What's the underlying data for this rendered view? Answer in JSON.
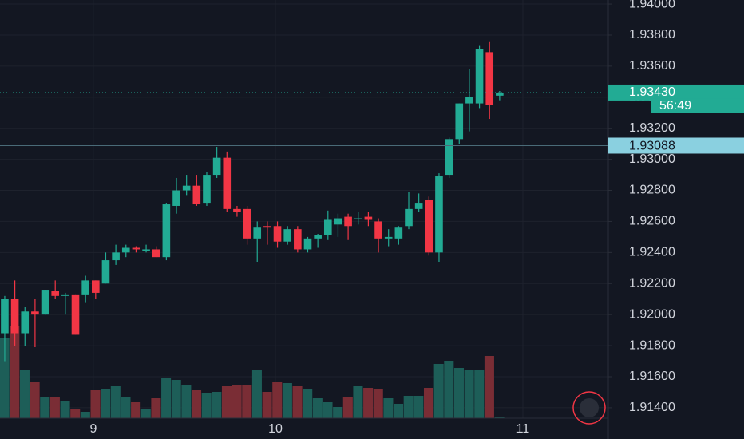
{
  "chart_data": {
    "type": "candlestick",
    "open": [
      1.9188,
      1.921,
      1.9188,
      1.9202,
      1.92,
      1.9215,
      1.9212,
      1.9213,
      1.9213,
      1.9222,
      1.922,
      1.9235,
      1.924,
      1.9243,
      1.9241,
      1.9242,
      1.9237,
      1.927,
      1.928,
      1.9283,
      1.9272,
      1.929,
      1.9301,
      1.9268,
      1.9268,
      1.9249,
      1.9257,
      1.9257,
      1.9247,
      1.9255,
      1.9242,
      1.9249,
      1.9251,
      1.9258,
      1.9263,
      1.9262,
      1.9263,
      1.926,
      1.9249,
      1.9249,
      1.9257,
      1.9268,
      1.9274,
      1.924,
      1.929,
      1.9313,
      1.9336,
      1.9336,
      1.9369,
      1.9341
    ],
    "high": [
      1.9212,
      1.9222,
      1.9205,
      1.921,
      1.9216,
      1.9222,
      1.9214,
      1.9213,
      1.9225,
      1.9222,
      1.924,
      1.9245,
      1.9245,
      1.9244,
      1.9245,
      1.9244,
      1.9272,
      1.9288,
      1.929,
      1.929,
      1.9292,
      1.9308,
      1.9305,
      1.927,
      1.927,
      1.926,
      1.926,
      1.926,
      1.9257,
      1.9257,
      1.925,
      1.9252,
      1.9267,
      1.9265,
      1.9265,
      1.9266,
      1.9266,
      1.9262,
      1.9255,
      1.9257,
      1.9279,
      1.9278,
      1.9276,
      1.9291,
      1.9314,
      1.9336,
      1.9358,
      1.9373,
      1.9376,
      1.9344
    ],
    "low": [
      1.917,
      1.918,
      1.918,
      1.9179,
      1.92,
      1.921,
      1.92,
      1.9187,
      1.9208,
      1.921,
      1.922,
      1.9232,
      1.9237,
      1.924,
      1.924,
      1.9237,
      1.9235,
      1.9265,
      1.9277,
      1.927,
      1.927,
      1.9288,
      1.9266,
      1.9263,
      1.9245,
      1.9234,
      1.9245,
      1.9243,
      1.9245,
      1.924,
      1.924,
      1.9243,
      1.9248,
      1.925,
      1.9248,
      1.9258,
      1.9257,
      1.924,
      1.9244,
      1.9245,
      1.9255,
      1.9266,
      1.9238,
      1.9234,
      1.9288,
      1.931,
      1.9318,
      1.9333,
      1.9326,
      1.9338
    ],
    "close": [
      1.921,
      1.9188,
      1.9202,
      1.92,
      1.9216,
      1.9212,
      1.9213,
      1.9187,
      1.9222,
      1.9214,
      1.9235,
      1.924,
      1.9243,
      1.9242,
      1.9242,
      1.9237,
      1.9271,
      1.928,
      1.9283,
      1.9271,
      1.929,
      1.9301,
      1.9268,
      1.9266,
      1.9249,
      1.9256,
      1.9256,
      1.9247,
      1.9255,
      1.9242,
      1.9249,
      1.9251,
      1.9261,
      1.9262,
      1.9257,
      1.9262,
      1.9261,
      1.9249,
      1.925,
      1.9256,
      1.9268,
      1.9272,
      1.924,
      1.9289,
      1.9313,
      1.9336,
      1.934,
      1.9371,
      1.9335,
      1.9343
    ],
    "volume": [
      100,
      115,
      60,
      45,
      27,
      27,
      22,
      12,
      8,
      35,
      37,
      40,
      26,
      20,
      12,
      25,
      50,
      48,
      42,
      35,
      32,
      33,
      40,
      42,
      42,
      60,
      33,
      45,
      44,
      40,
      37,
      25,
      20,
      14,
      27,
      40,
      38,
      37,
      25,
      18,
      28,
      28,
      38,
      68,
      72,
      63,
      60,
      60,
      78,
      2
    ],
    "up_color": "#22ab94",
    "down_color": "#f23645",
    "volume_up_color": "#1d5e58",
    "volume_down_color": "#7a2d35",
    "ylim": [
      1.91199,
      1.94026
    ],
    "yticks": [
      {
        "value": 1.94,
        "label": "1.94000"
      },
      {
        "value": 1.938,
        "label": "1.93800"
      },
      {
        "value": 1.936,
        "label": "1.93600"
      },
      {
        "value": 1.934,
        "label": "1.93400"
      },
      {
        "value": 1.932,
        "label": "1.93200"
      },
      {
        "value": 1.93,
        "label": "1.93000"
      },
      {
        "value": 1.928,
        "label": "1.92800"
      },
      {
        "value": 1.926,
        "label": "1.92600"
      },
      {
        "value": 1.924,
        "label": "1.92400"
      },
      {
        "value": 1.922,
        "label": "1.92200"
      },
      {
        "value": 1.92,
        "label": "1.92000"
      },
      {
        "value": 1.918,
        "label": "1.91800"
      },
      {
        "value": 1.916,
        "label": "1.91600"
      },
      {
        "value": 1.914,
        "label": "1.91400"
      }
    ],
    "xlim": [
      -0.47,
      59.76
    ],
    "xticks": [
      {
        "value": 8.77,
        "label": "9"
      },
      {
        "value": 26.8,
        "label": "10"
      },
      {
        "value": 51.3,
        "label": "11"
      }
    ],
    "grid": true,
    "last_price": {
      "value": 1.9343,
      "label": "1.93430",
      "countdown": "56:49"
    },
    "price_line": {
      "value": 1.93088,
      "label": "1.93088"
    }
  }
}
